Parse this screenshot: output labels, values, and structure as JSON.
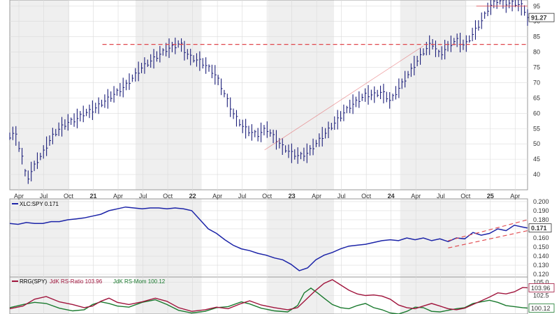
{
  "chart_data": [
    {
      "type": "ohlc",
      "x_labels": [
        "Apr",
        "Jul",
        "Oct",
        "21",
        "Apr",
        "Jul",
        "Oct",
        "22",
        "Apr",
        "Jul",
        "Oct",
        "23",
        "Apr",
        "Jul",
        "Oct",
        "24",
        "Apr",
        "Jul",
        "Oct",
        "25",
        "Apr"
      ],
      "year_labels": [
        "21",
        "22",
        "23",
        "24",
        "25"
      ],
      "y_ticks": [
        40,
        45,
        50,
        55,
        60,
        65,
        70,
        75,
        80,
        85,
        90,
        95
      ],
      "ylim": [
        35,
        97
      ],
      "last_value": "91.27",
      "last_value_numeric": 91.27,
      "series_close": [
        [
          0,
          52.5
        ],
        [
          0.3,
          54
        ],
        [
          0.5,
          50
        ],
        [
          0.8,
          45
        ],
        [
          1,
          38
        ],
        [
          1.3,
          41
        ],
        [
          1.6,
          44
        ],
        [
          2,
          47
        ],
        [
          2.5,
          52
        ],
        [
          3,
          55
        ],
        [
          3.5,
          57
        ],
        [
          4,
          58
        ],
        [
          4.5,
          60
        ],
        [
          5,
          61
        ],
        [
          5.5,
          63
        ],
        [
          6,
          65
        ],
        [
          6.5,
          67
        ],
        [
          7,
          69
        ],
        [
          7.5,
          72
        ],
        [
          8,
          75
        ],
        [
          8.5,
          77
        ],
        [
          9,
          79
        ],
        [
          9.5,
          81
        ],
        [
          10,
          82
        ],
        [
          10.3,
          83
        ],
        [
          10.6,
          80
        ],
        [
          11,
          78
        ],
        [
          11.5,
          77
        ],
        [
          12,
          75
        ],
        [
          12.5,
          72
        ],
        [
          13,
          66
        ],
        [
          13.5,
          60
        ],
        [
          14,
          56
        ],
        [
          14.5,
          54
        ],
        [
          15,
          53
        ],
        [
          15.5,
          55
        ],
        [
          16,
          52
        ],
        [
          16.5,
          49
        ],
        [
          17,
          47
        ],
        [
          17.5,
          46
        ],
        [
          18,
          47
        ],
        [
          18.5,
          50
        ],
        [
          19,
          53
        ],
        [
          19.5,
          56
        ],
        [
          20,
          59
        ],
        [
          20.5,
          62
        ],
        [
          21,
          64
        ],
        [
          21.5,
          66
        ],
        [
          22,
          66
        ],
        [
          22.5,
          67
        ],
        [
          23,
          64
        ],
        [
          23.5,
          68
        ],
        [
          24,
          72
        ],
        [
          24.5,
          76
        ],
        [
          25,
          80
        ],
        [
          25.5,
          83
        ],
        [
          26,
          79
        ],
        [
          26.5,
          82
        ],
        [
          27,
          84
        ],
        [
          27.5,
          82
        ],
        [
          28,
          86
        ],
        [
          28.5,
          90
        ],
        [
          29,
          95
        ],
        [
          29.5,
          97
        ],
        [
          30,
          96
        ],
        [
          30.5,
          96
        ],
        [
          31,
          95
        ],
        [
          31.3,
          91.27
        ]
      ],
      "support_line": 82.5,
      "top_line": 95
    },
    {
      "type": "line",
      "legend": "XLC:SPY 0.171",
      "legend_short": "XLC:SPY",
      "y_ticks": [
        "0.200",
        "0.190",
        "0.180",
        "0.170",
        "0.160",
        "0.150",
        "0.140",
        "0.130",
        "0.120"
      ],
      "y_tick_values": [
        0.2,
        0.19,
        0.18,
        0.17,
        0.16,
        0.15,
        0.14,
        0.13,
        0.12
      ],
      "ylim": [
        0.117,
        0.203
      ],
      "last_value": "0.171",
      "series": [
        [
          0,
          0.176
        ],
        [
          0.5,
          0.175
        ],
        [
          1,
          0.177
        ],
        [
          1.5,
          0.176
        ],
        [
          2,
          0.176
        ],
        [
          2.5,
          0.178
        ],
        [
          3,
          0.178
        ],
        [
          3.5,
          0.18
        ],
        [
          4,
          0.181
        ],
        [
          4.5,
          0.182
        ],
        [
          5,
          0.184
        ],
        [
          5.5,
          0.186
        ],
        [
          6,
          0.19
        ],
        [
          6.5,
          0.192
        ],
        [
          7,
          0.194
        ],
        [
          7.5,
          0.193
        ],
        [
          8,
          0.192
        ],
        [
          8.5,
          0.193
        ],
        [
          9,
          0.193
        ],
        [
          9.5,
          0.192
        ],
        [
          10,
          0.193
        ],
        [
          10.5,
          0.192
        ],
        [
          11,
          0.19
        ],
        [
          11.5,
          0.18
        ],
        [
          12,
          0.17
        ],
        [
          12.5,
          0.165
        ],
        [
          13,
          0.158
        ],
        [
          13.5,
          0.152
        ],
        [
          14,
          0.148
        ],
        [
          14.5,
          0.146
        ],
        [
          15,
          0.143
        ],
        [
          15.5,
          0.141
        ],
        [
          16,
          0.138
        ],
        [
          16.5,
          0.136
        ],
        [
          17,
          0.131
        ],
        [
          17.5,
          0.124
        ],
        [
          18,
          0.127
        ],
        [
          18.5,
          0.136
        ],
        [
          19,
          0.141
        ],
        [
          19.5,
          0.144
        ],
        [
          20,
          0.148
        ],
        [
          20.5,
          0.151
        ],
        [
          21,
          0.152
        ],
        [
          21.5,
          0.153
        ],
        [
          22,
          0.155
        ],
        [
          22.5,
          0.157
        ],
        [
          23,
          0.158
        ],
        [
          23.5,
          0.157
        ],
        [
          24,
          0.16
        ],
        [
          24.5,
          0.158
        ],
        [
          25,
          0.16
        ],
        [
          25.5,
          0.157
        ],
        [
          26,
          0.159
        ],
        [
          26.5,
          0.156
        ],
        [
          27,
          0.16
        ],
        [
          27.5,
          0.159
        ],
        [
          28,
          0.166
        ],
        [
          28.5,
          0.163
        ],
        [
          29,
          0.165
        ],
        [
          29.5,
          0.17
        ],
        [
          30,
          0.168
        ],
        [
          30.5,
          0.174
        ],
        [
          31,
          0.172
        ],
        [
          31.3,
          0.171
        ]
      ]
    },
    {
      "type": "line",
      "legend_prefix": "RRG(SPY)",
      "legend_ratio": "JdK RS-Ratio 103.96",
      "legend_mom": "JdK RS-Mom 100.12",
      "y_ticks": [
        "105.0",
        "102.5"
      ],
      "y_tick_values": [
        105.0,
        102.5
      ],
      "ylim": [
        99.0,
        106.0
      ],
      "last_ratio": "103.96",
      "last_mom": "100.12",
      "ratio_color": "#a0143c",
      "mom_color": "#1a7a2e",
      "series_ratio": [
        [
          0,
          100.0
        ],
        [
          0.8,
          100.5
        ],
        [
          1.5,
          101.8
        ],
        [
          2.2,
          102.3
        ],
        [
          3,
          101.3
        ],
        [
          3.8,
          100.8
        ],
        [
          4.5,
          100.2
        ],
        [
          5,
          100.5
        ],
        [
          5.5,
          101.4
        ],
        [
          6,
          102.0
        ],
        [
          6.5,
          101.2
        ],
        [
          7.2,
          100.8
        ],
        [
          8,
          101.3
        ],
        [
          8.8,
          102.0
        ],
        [
          9.5,
          101.4
        ],
        [
          10.2,
          100.2
        ],
        [
          11,
          99.5
        ],
        [
          11.8,
          99.8
        ],
        [
          12.5,
          100.3
        ],
        [
          13.2,
          100.0
        ],
        [
          14,
          101.0
        ],
        [
          14.5,
          101.5
        ],
        [
          15.2,
          100.7
        ],
        [
          16,
          100.2
        ],
        [
          16.8,
          99.8
        ],
        [
          17.4,
          100.2
        ],
        [
          18,
          102.0
        ],
        [
          18.5,
          103.5
        ],
        [
          19,
          104.8
        ],
        [
          19.5,
          105.5
        ],
        [
          20,
          104.5
        ],
        [
          20.5,
          103.5
        ],
        [
          21,
          102.8
        ],
        [
          21.5,
          102.5
        ],
        [
          22,
          102.6
        ],
        [
          22.5,
          102.4
        ],
        [
          23,
          101.8
        ],
        [
          23.5,
          100.7
        ],
        [
          24,
          100.2
        ],
        [
          24.5,
          100.0
        ],
        [
          25,
          100.5
        ],
        [
          25.5,
          101.0
        ],
        [
          26,
          100.5
        ],
        [
          26.5,
          100.0
        ],
        [
          27,
          99.8
        ],
        [
          27.5,
          100.1
        ],
        [
          28,
          100.8
        ],
        [
          28.5,
          101.5
        ],
        [
          29,
          102.2
        ],
        [
          29.5,
          103.0
        ],
        [
          30,
          102.8
        ],
        [
          30.5,
          103.2
        ],
        [
          31,
          104.0
        ],
        [
          31.3,
          103.96
        ]
      ],
      "series_mom": [
        [
          0,
          100.2
        ],
        [
          0.8,
          100.8
        ],
        [
          1.5,
          101.2
        ],
        [
          2.2,
          101.0
        ],
        [
          3,
          100.1
        ],
        [
          3.8,
          99.6
        ],
        [
          4.5,
          99.8
        ],
        [
          5,
          100.8
        ],
        [
          5.5,
          101.3
        ],
        [
          6,
          101.0
        ],
        [
          6.5,
          100.5
        ],
        [
          7.2,
          100.3
        ],
        [
          8,
          101.2
        ],
        [
          8.8,
          101.7
        ],
        [
          9.5,
          100.8
        ],
        [
          10.2,
          99.7
        ],
        [
          11,
          99.2
        ],
        [
          11.8,
          99.5
        ],
        [
          12.5,
          100.2
        ],
        [
          13.2,
          100.4
        ],
        [
          14,
          101.3
        ],
        [
          14.5,
          100.9
        ],
        [
          15.2,
          100.1
        ],
        [
          16,
          99.6
        ],
        [
          16.8,
          99.4
        ],
        [
          17.4,
          100.6
        ],
        [
          17.8,
          103.0
        ],
        [
          18.2,
          103.9
        ],
        [
          18.6,
          103.0
        ],
        [
          19,
          102.0
        ],
        [
          19.5,
          100.8
        ],
        [
          20,
          100.2
        ],
        [
          20.5,
          100.0
        ],
        [
          21,
          100.6
        ],
        [
          21.5,
          101.0
        ],
        [
          22,
          100.2
        ],
        [
          22.5,
          99.8
        ],
        [
          23,
          99.2
        ],
        [
          23.5,
          99.0
        ],
        [
          24,
          99.5
        ],
        [
          24.5,
          100.3
        ],
        [
          25,
          100.2
        ],
        [
          25.5,
          99.5
        ],
        [
          26,
          99.4
        ],
        [
          26.5,
          99.7
        ],
        [
          27,
          100.0
        ],
        [
          27.5,
          100.2
        ],
        [
          28,
          101.0
        ],
        [
          28.5,
          101.3
        ],
        [
          29,
          101.6
        ],
        [
          29.5,
          101.2
        ],
        [
          30,
          100.6
        ],
        [
          30.5,
          100.4
        ],
        [
          31,
          100.2
        ],
        [
          31.3,
          100.12
        ]
      ]
    }
  ],
  "colors": {
    "price": "#1c1f7a",
    "rs_line": "#1c24a8",
    "dashed": "#e0474c",
    "label_box": "#ffffff"
  }
}
